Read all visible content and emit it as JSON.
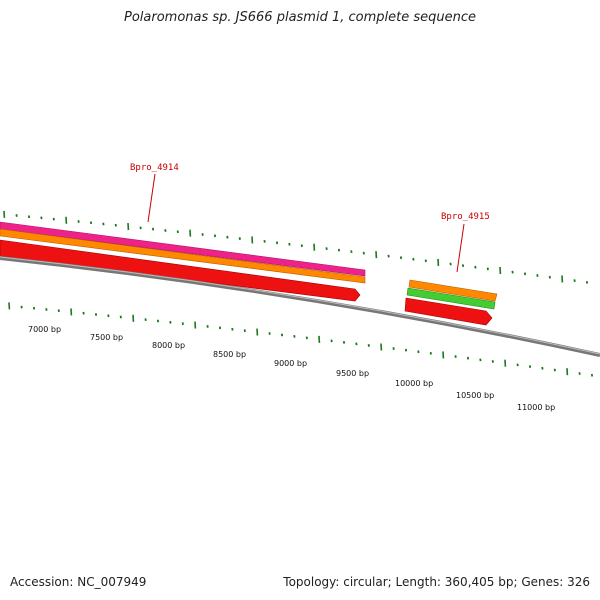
{
  "title": "Polaromonas sp. JS666 plasmid 1, complete sequence",
  "footer": {
    "accession": "Accession: NC_007949",
    "summary": "Topology: circular; Length: 360,405 bp; Genes: 326"
  },
  "gene_labels": [
    {
      "text": "Bpro_4914",
      "color": "#cc0000"
    },
    {
      "text": "Bpro_4915",
      "color": "#cc0000"
    }
  ],
  "bp_labels": [
    "7000 bp",
    "7500 bp",
    "8000 bp",
    "8500 bp",
    "9000 bp",
    "9500 bp",
    "10000 bp",
    "10500 bp",
    "11000 bp"
  ],
  "colors": {
    "backbone": "#808080",
    "ticks": "#1a7a1a",
    "pink": "#ee2288",
    "orange": "#ff8800",
    "green": "#44cc33",
    "red": "#ee1111"
  }
}
